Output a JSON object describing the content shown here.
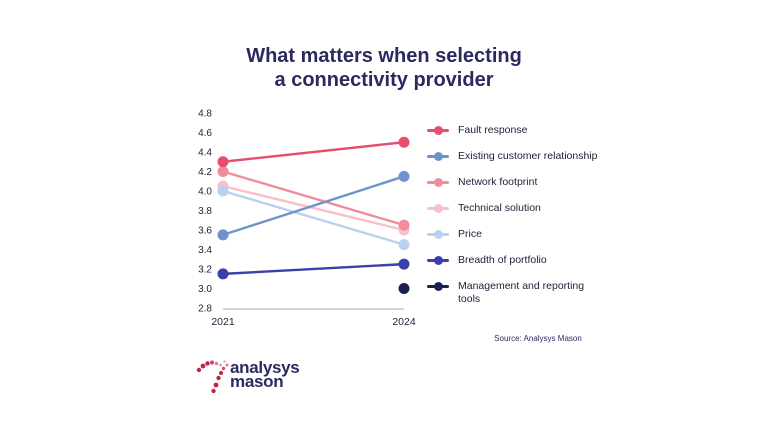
{
  "title": {
    "line1": "What matters when selecting",
    "line2": "a connectivity provider"
  },
  "colors": {
    "title": "#2b2a5e",
    "text": "#1f1f38",
    "axis_line": "#aaaaaa",
    "source": "#2b2a5e",
    "logo_red": "#c42443",
    "logo_text": "#2b2a5e"
  },
  "chart_data": {
    "type": "line",
    "title": "What matters when selecting a connectivity provider",
    "x_categories": [
      "2021",
      "2024"
    ],
    "ylim": [
      2.8,
      4.8
    ],
    "yticks": [
      4.8,
      4.6,
      4.4,
      4.2,
      4.0,
      3.8,
      3.6,
      3.4,
      3.2,
      3.0,
      2.8
    ],
    "grid": false,
    "legend_position": "right",
    "series": [
      {
        "name": "Fault response",
        "color": "#e74d6d",
        "values": [
          4.3,
          4.5
        ]
      },
      {
        "name": "Existing customer relationship",
        "color": "#6d92cd",
        "values": [
          3.55,
          4.15
        ]
      },
      {
        "name": "Network footprint",
        "color": "#f08d9d",
        "values": [
          4.2,
          3.65
        ]
      },
      {
        "name": "Technical solution",
        "color": "#f7c0ca",
        "values": [
          4.05,
          3.6
        ]
      },
      {
        "name": "Price",
        "color": "#b8d1ee",
        "values": [
          4.0,
          3.45
        ]
      },
      {
        "name": "Breadth of portfolio",
        "color": "#3a3fa9",
        "values": [
          3.15,
          3.25
        ]
      },
      {
        "name": "Management and reporting tools",
        "color": "#1c2050",
        "values": [
          null,
          3.0
        ]
      }
    ]
  },
  "source": "Source: Analysys Mason",
  "logo": {
    "line1": "analysys",
    "line2": "mason"
  }
}
